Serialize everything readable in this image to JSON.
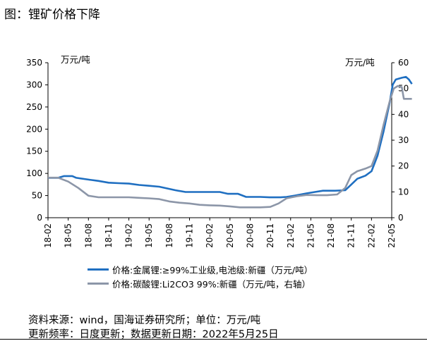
{
  "figure_title": "图：锂矿价格下降",
  "footer": {
    "source": "资料来源：wind，国海证券研究所；单位：万元/吨",
    "update": "更新频率：日度更新；数据更新日期：2022年5月25日"
  },
  "chart_data": {
    "type": "line",
    "title": "",
    "y_left_label": "万元/吨",
    "y_right_label": "万元/吨",
    "y_left_lim": [
      0,
      350
    ],
    "y_left_ticks": [
      0,
      50,
      100,
      150,
      200,
      250,
      300,
      350
    ],
    "y_right_lim": [
      0,
      60
    ],
    "y_right_ticks": [
      0,
      10,
      20,
      30,
      40,
      50,
      60
    ],
    "x_tick_labels": [
      "18-02",
      "18-05",
      "18-08",
      "18-11",
      "19-02",
      "19-05",
      "19-08",
      "19-11",
      "20-02",
      "20-05",
      "20-08",
      "20-11",
      "21-02",
      "21-05",
      "21-08",
      "21-11",
      "22-02",
      "22-05"
    ],
    "grid": false,
    "legend_position": "bottom",
    "series": [
      {
        "name": "价格:金属锂:≥99%工业级,电池级:新疆（万元/吨）",
        "axis": "left",
        "color": "#1f6fc1",
        "points": [
          [
            0,
            90
          ],
          [
            0.5,
            90
          ],
          [
            0.8,
            94
          ],
          [
            1.2,
            94
          ],
          [
            1.4,
            90
          ],
          [
            2.0,
            86
          ],
          [
            2.5,
            83
          ],
          [
            3.0,
            79
          ],
          [
            3.5,
            78
          ],
          [
            4.0,
            77
          ],
          [
            4.5,
            74
          ],
          [
            5.0,
            72
          ],
          [
            5.5,
            70
          ],
          [
            6.0,
            65
          ],
          [
            6.3,
            62
          ],
          [
            6.8,
            58
          ],
          [
            7.5,
            58
          ],
          [
            8.0,
            58
          ],
          [
            8.5,
            58
          ],
          [
            8.9,
            54
          ],
          [
            9.4,
            54
          ],
          [
            9.8,
            47
          ],
          [
            10.5,
            47
          ],
          [
            11.0,
            46
          ],
          [
            11.5,
            46
          ],
          [
            11.8,
            47
          ],
          [
            12.2,
            50
          ],
          [
            12.8,
            55
          ],
          [
            13.2,
            58
          ],
          [
            13.6,
            61
          ],
          [
            14.2,
            61
          ],
          [
            14.7,
            62
          ],
          [
            15.0,
            75
          ],
          [
            15.3,
            88
          ],
          [
            15.7,
            95
          ],
          [
            16.0,
            105
          ],
          [
            16.3,
            140
          ],
          [
            16.6,
            195
          ],
          [
            16.9,
            260
          ],
          [
            17.05,
            300
          ],
          [
            17.2,
            312
          ],
          [
            17.5,
            316
          ],
          [
            17.7,
            318
          ],
          [
            17.85,
            312
          ],
          [
            18.0,
            302
          ]
        ]
      },
      {
        "name": "价格:碳酸锂:Li2CO3 99%:新疆（万元/吨，右轴）",
        "axis": "right",
        "color": "#8c96a8",
        "points": [
          [
            0,
            15.5
          ],
          [
            0.5,
            15.5
          ],
          [
            1.0,
            14.0
          ],
          [
            1.5,
            11.5
          ],
          [
            2.0,
            8.5
          ],
          [
            2.5,
            7.9
          ],
          [
            3.0,
            7.9
          ],
          [
            4.0,
            7.9
          ],
          [
            4.5,
            7.7
          ],
          [
            5.0,
            7.5
          ],
          [
            5.5,
            7.2
          ],
          [
            6.0,
            6.3
          ],
          [
            6.5,
            5.8
          ],
          [
            7.0,
            5.5
          ],
          [
            7.5,
            5.0
          ],
          [
            8.0,
            4.8
          ],
          [
            8.5,
            4.7
          ],
          [
            9.0,
            4.4
          ],
          [
            9.5,
            4.0
          ],
          [
            10.0,
            4.0
          ],
          [
            10.5,
            4.0
          ],
          [
            11.0,
            4.2
          ],
          [
            11.4,
            5.5
          ],
          [
            11.8,
            7.5
          ],
          [
            12.3,
            8.3
          ],
          [
            12.8,
            8.8
          ],
          [
            13.3,
            8.7
          ],
          [
            13.8,
            8.7
          ],
          [
            14.3,
            9.0
          ],
          [
            14.7,
            11.5
          ],
          [
            15.0,
            16.5
          ],
          [
            15.3,
            18.0
          ],
          [
            15.7,
            19.0
          ],
          [
            16.0,
            20.0
          ],
          [
            16.3,
            26.0
          ],
          [
            16.6,
            36.0
          ],
          [
            16.9,
            45.0
          ],
          [
            17.1,
            50.0
          ],
          [
            17.3,
            51.0
          ],
          [
            17.5,
            50.5
          ],
          [
            17.6,
            46.0
          ],
          [
            17.8,
            46.0
          ],
          [
            18.0,
            46.0
          ]
        ]
      }
    ]
  }
}
